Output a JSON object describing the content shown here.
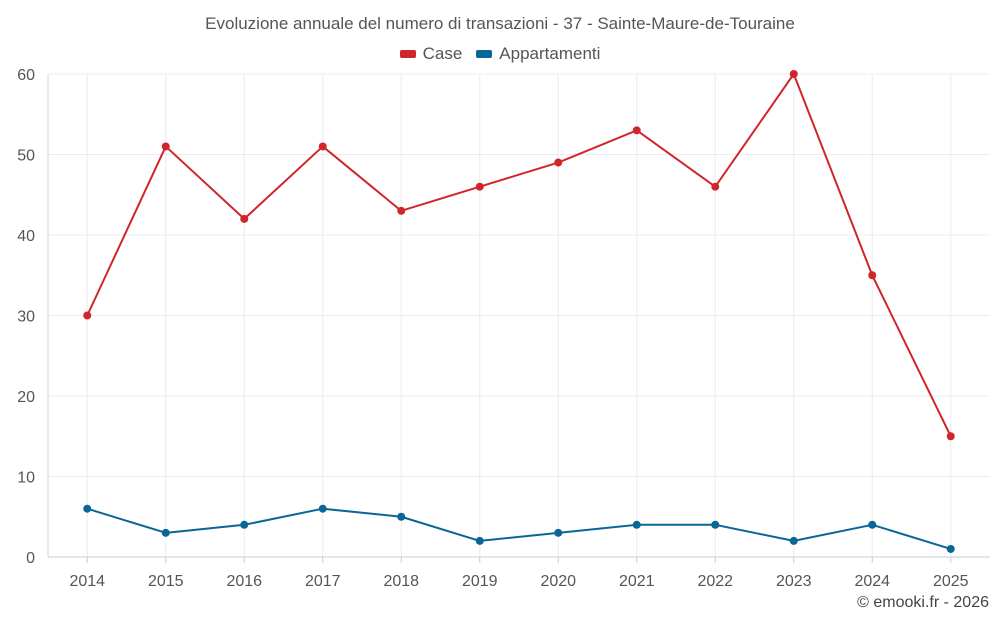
{
  "chart_data": {
    "type": "line",
    "title": "Evoluzione annuale del numero di transazioni - 37 - Sainte-Maure-de-Touraine",
    "categories": [
      "2014",
      "2015",
      "2016",
      "2017",
      "2018",
      "2019",
      "2020",
      "2021",
      "2022",
      "2023",
      "2024",
      "2025"
    ],
    "series": [
      {
        "name": "Case",
        "color": "#d0262b",
        "values": [
          30,
          51,
          42,
          51,
          43,
          46,
          49,
          53,
          46,
          60,
          35,
          15
        ]
      },
      {
        "name": "Appartamenti",
        "color": "#0a6598",
        "values": [
          6,
          3,
          4,
          6,
          5,
          2,
          3,
          4,
          4,
          2,
          4,
          1
        ]
      }
    ],
    "xlabel": "",
    "ylabel": "",
    "ylim": [
      0,
      60
    ],
    "yticks": [
      0,
      10,
      20,
      30,
      40,
      50,
      60
    ],
    "grid": true,
    "legend_position": "top-center"
  },
  "credit": "© emooki.fr - 2026"
}
